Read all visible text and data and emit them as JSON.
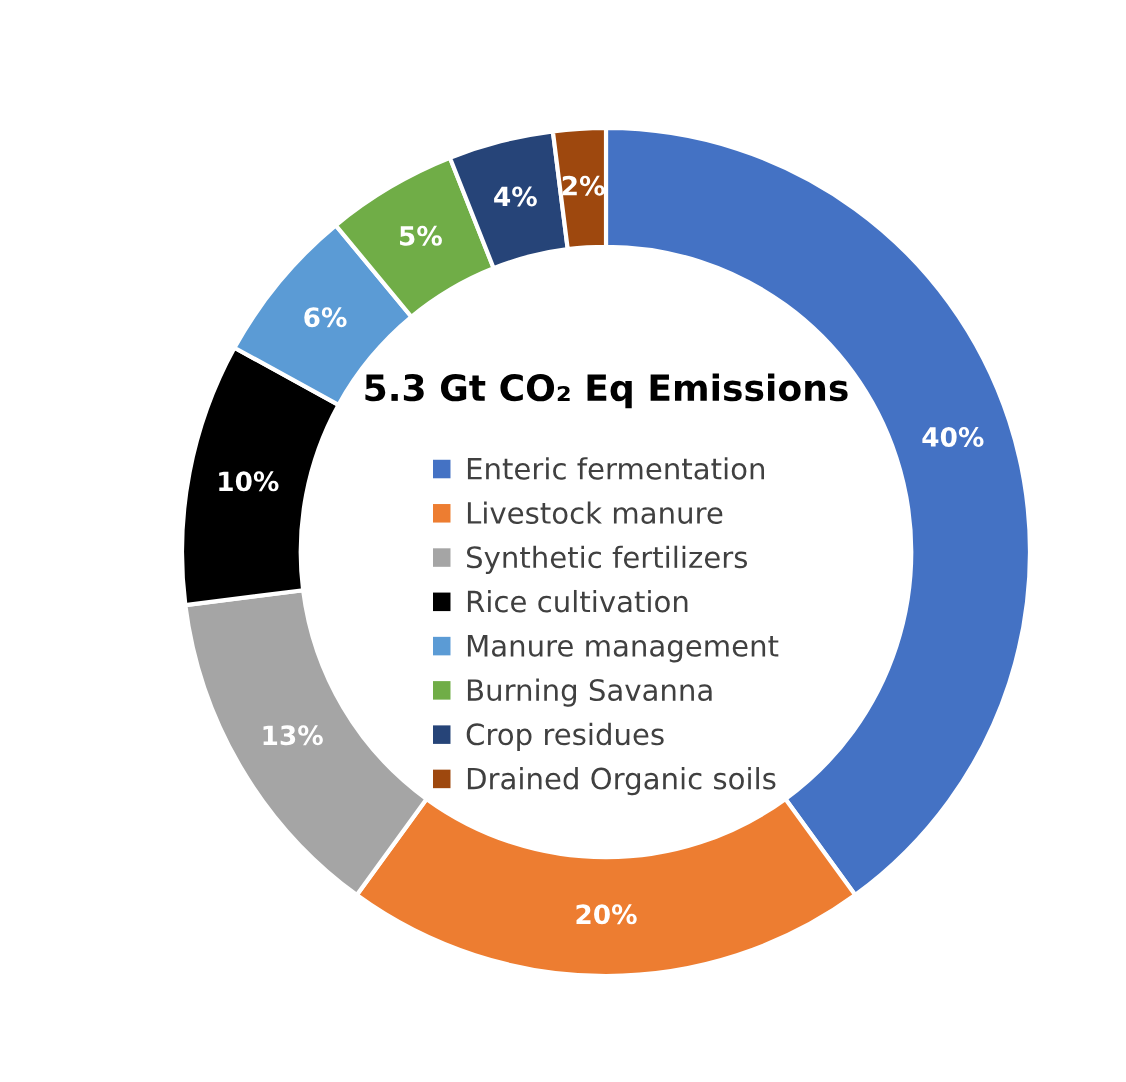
{
  "chart_data": {
    "type": "donut",
    "title": "5.3 Gt CO₂ Eq Emissions",
    "categories": [
      "Enteric fermentation",
      "Livestock manure",
      "Synthetic fertilizers",
      "Rice cultivation",
      "Manure management",
      "Burning Savanna",
      "Crop residues",
      "Drained Organic soils"
    ],
    "values": [
      40,
      20,
      13,
      10,
      6,
      5,
      4,
      2
    ],
    "colors": [
      "#4472c4",
      "#ed7d31",
      "#a5a5a5",
      "#000000",
      "#5b9bd5",
      "#70ad47",
      "#264478",
      "#9e480e"
    ],
    "value_labels": [
      "40%",
      "20%",
      "13%",
      "10%",
      "6%",
      "5%",
      "4%",
      "2%"
    ],
    "legend": "center"
  }
}
